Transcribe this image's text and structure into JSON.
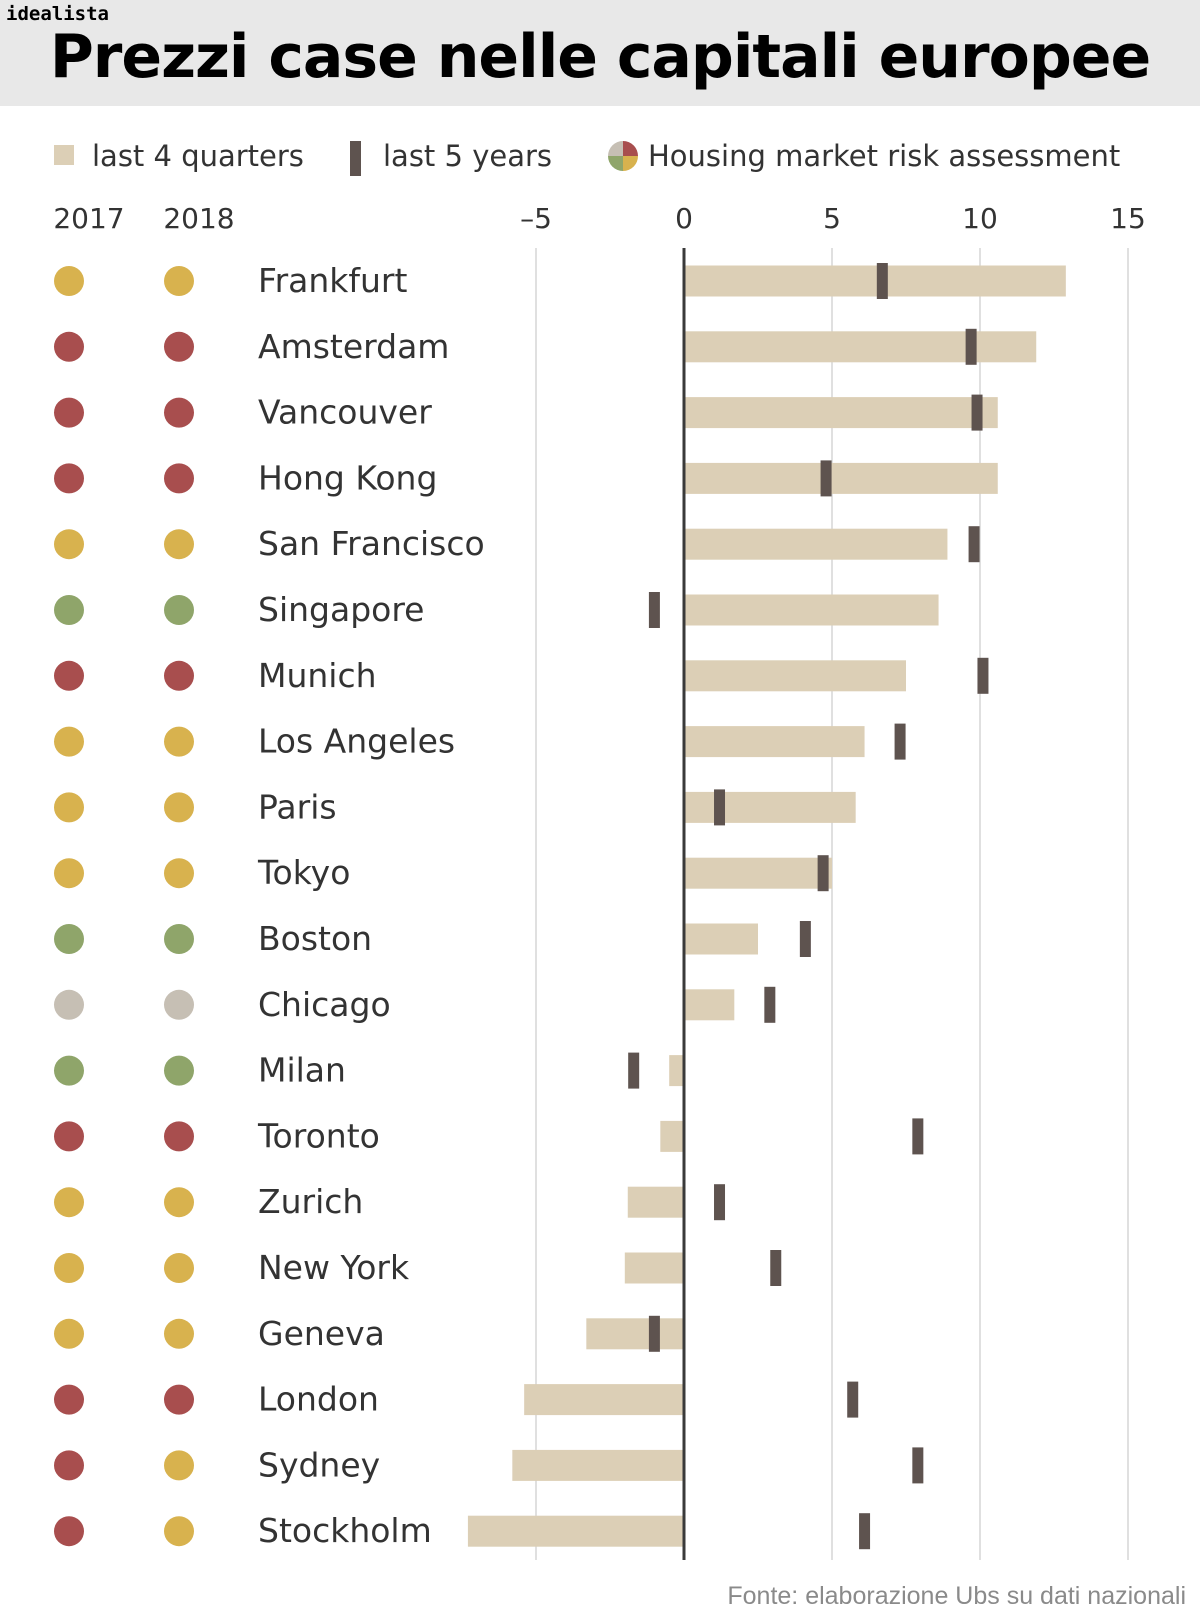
{
  "brand": "idealista",
  "title": "Prezzi case nelle capitali europee",
  "source": "Fonte: elaborazione Ubs su dati nazionali",
  "legend": {
    "quarters": "last 4 quarters",
    "years": "last 5 years",
    "risk": "Housing market risk assessment"
  },
  "colors": {
    "bar": "#dccfb6",
    "marker": "#5e534f",
    "axis": "#3a3a3a",
    "grid": "#d6d6d6",
    "red": "#a84e4e",
    "yellow": "#d8b24e",
    "green": "#8fa56a",
    "grey": "#c6bfb4"
  },
  "chart_data": {
    "type": "bar",
    "orientation": "horizontal",
    "x_ticks": [
      "–5",
      "0",
      "5",
      "10",
      "15"
    ],
    "xlim": [
      -7,
      15
    ],
    "grid": true,
    "risk_columns": [
      "2017",
      "2018"
    ],
    "categories": [
      "Frankfurt",
      "Amsterdam",
      "Vancouver",
      "Hong Kong",
      "San Francisco",
      "Singapore",
      "Munich",
      "Los Angeles",
      "Paris",
      "Tokyo",
      "Boston",
      "Chicago",
      "Milan",
      "Toronto",
      "Zurich",
      "New York",
      "Geneva",
      "London",
      "Sydney",
      "Stockholm"
    ],
    "series": [
      {
        "name": "last 4 quarters",
        "values": [
          12.9,
          11.9,
          10.6,
          10.6,
          8.9,
          8.6,
          7.5,
          6.1,
          5.8,
          5.0,
          2.5,
          1.7,
          -0.5,
          -0.8,
          -1.9,
          -2.0,
          -3.3,
          -5.4,
          -5.8,
          -7.3
        ]
      },
      {
        "name": "last 5 years",
        "values": [
          6.7,
          9.7,
          9.9,
          4.8,
          9.8,
          -1.0,
          10.1,
          7.3,
          1.2,
          4.7,
          4.1,
          2.9,
          -1.7,
          7.9,
          1.2,
          3.1,
          -1.0,
          5.7,
          7.9,
          6.1
        ]
      }
    ],
    "risk_2017": [
      "yellow",
      "red",
      "red",
      "red",
      "yellow",
      "green",
      "red",
      "yellow",
      "yellow",
      "yellow",
      "green",
      "grey",
      "green",
      "red",
      "yellow",
      "yellow",
      "yellow",
      "red",
      "red",
      "red"
    ],
    "risk_2018": [
      "yellow",
      "red",
      "red",
      "red",
      "yellow",
      "green",
      "red",
      "yellow",
      "yellow",
      "yellow",
      "green",
      "grey",
      "green",
      "red",
      "yellow",
      "yellow",
      "yellow",
      "red",
      "yellow",
      "yellow"
    ]
  }
}
